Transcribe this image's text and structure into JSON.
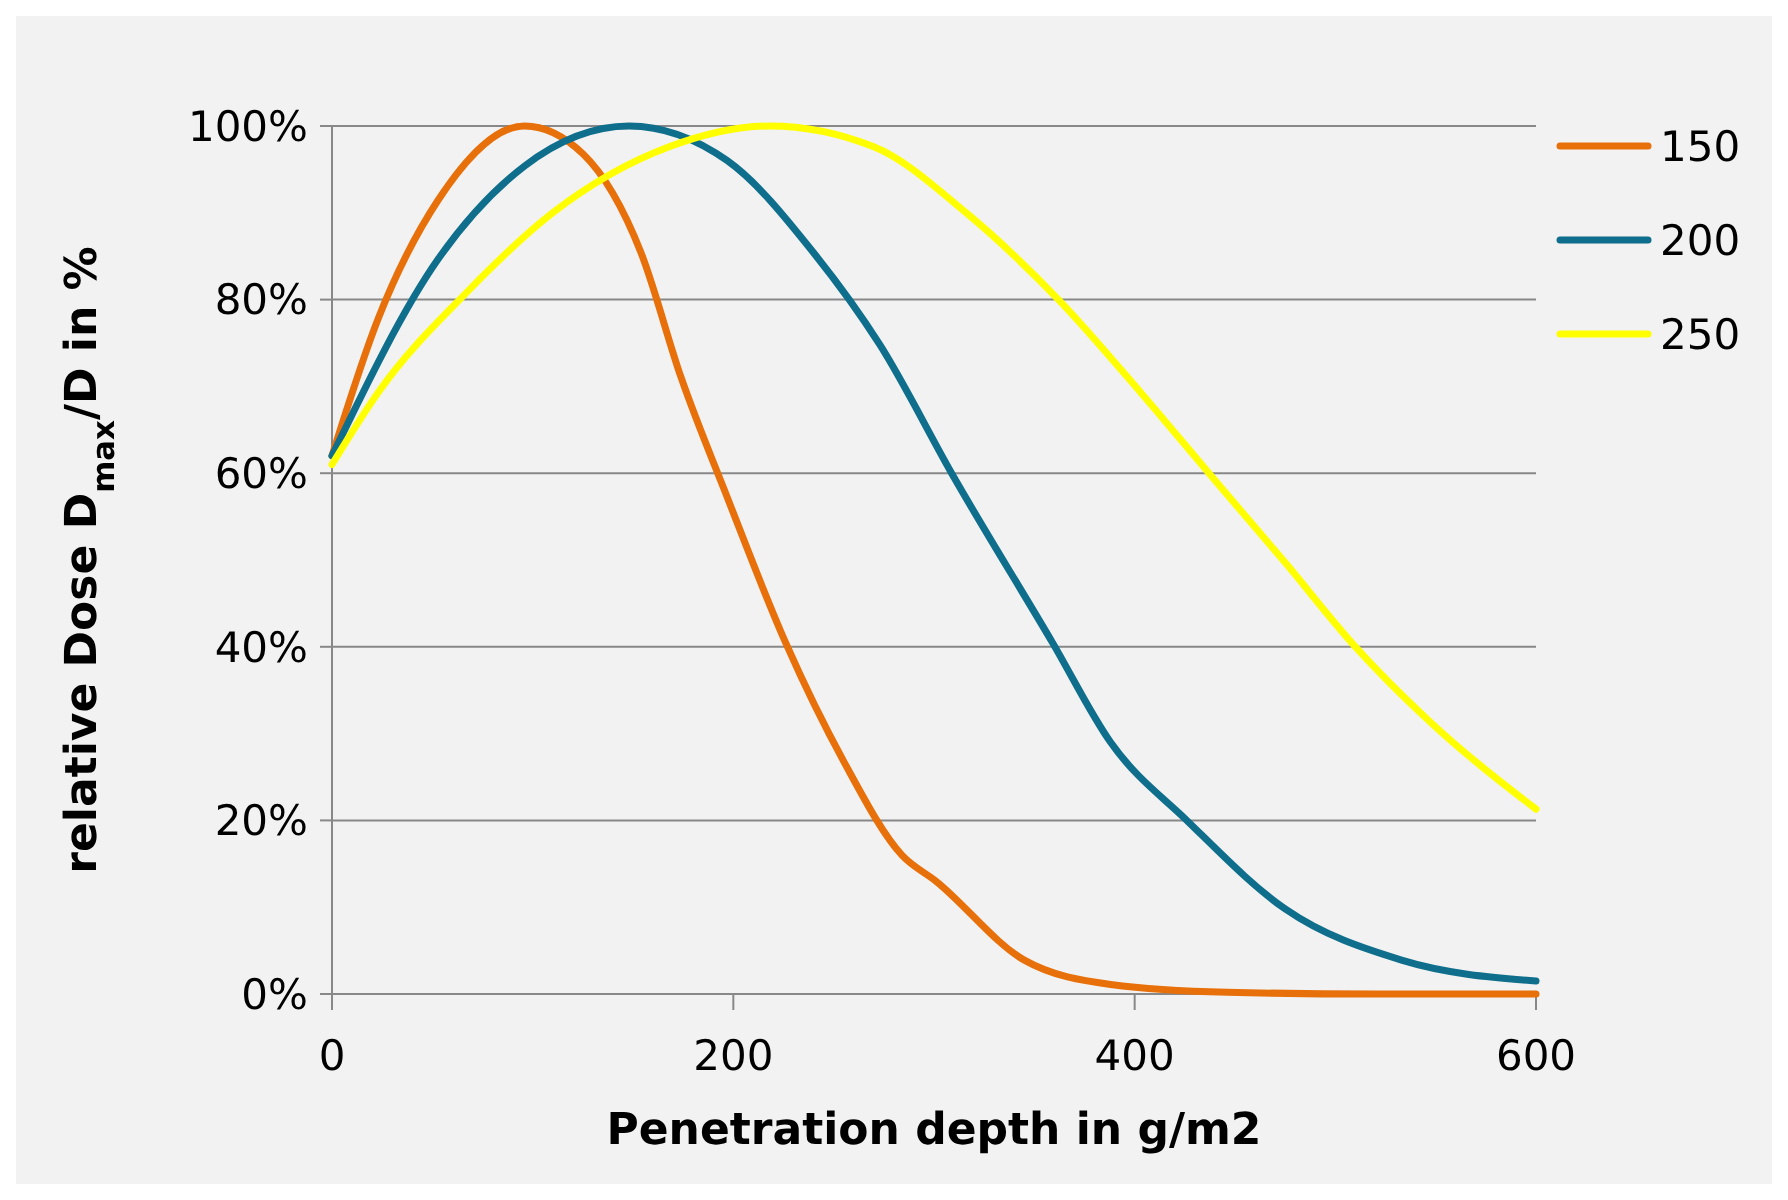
{
  "chart_data": {
    "type": "line",
    "xlabel": "Penetration depth in g/m2",
    "ylabel": "relative Dose D$_{max}$/D in %",
    "xlim": [
      0,
      600
    ],
    "xticks": [
      0,
      200,
      400,
      600
    ],
    "ylim": [
      0,
      100
    ],
    "yticks": [
      {
        "value": 0,
        "label": "0%"
      },
      {
        "value": 20,
        "label": "20%"
      },
      {
        "value": 40,
        "label": "40%"
      },
      {
        "value": 60,
        "label": "60%"
      },
      {
        "value": 80,
        "label": "80%"
      },
      {
        "value": 100,
        "label": "100%"
      }
    ],
    "grid": "y",
    "legend": "top right",
    "line_style": "solid",
    "marker": "none",
    "series": [
      {
        "name": "150",
        "color": "#e8700a",
        "x": [
          0,
          23,
          53,
          96,
          125,
          154,
          174,
          197,
          226,
          255,
          284,
          301,
          345,
          388,
          446,
          520,
          600
        ],
        "values": [
          62,
          77.8,
          91.5,
          100,
          96.8,
          85.4,
          71,
          57.2,
          40.5,
          26.8,
          16,
          13,
          3.9,
          1.1,
          0.2,
          0,
          0
        ]
      },
      {
        "name": "200",
        "color": "#0e6e8c",
        "x": [
          0,
          53,
          96,
          148,
          197,
          240,
          273,
          310,
          359,
          388,
          426,
          475,
          533,
          600
        ],
        "values": [
          62,
          84.7,
          95.4,
          100,
          96,
          85.4,
          74.8,
          59.5,
          40.5,
          29,
          20,
          9.8,
          3.9,
          1.5
        ]
      },
      {
        "name": "250",
        "color": "#ffff00",
        "x": [
          0,
          23,
          67,
          110,
          168,
          218,
          270,
          316,
          362,
          403,
          437,
          475,
          510,
          547,
          600
        ],
        "values": [
          61,
          69.3,
          80.8,
          90,
          97.6,
          100,
          97.6,
          90,
          80,
          69.3,
          60,
          49.7,
          40,
          31.4,
          21.3
        ]
      }
    ]
  }
}
